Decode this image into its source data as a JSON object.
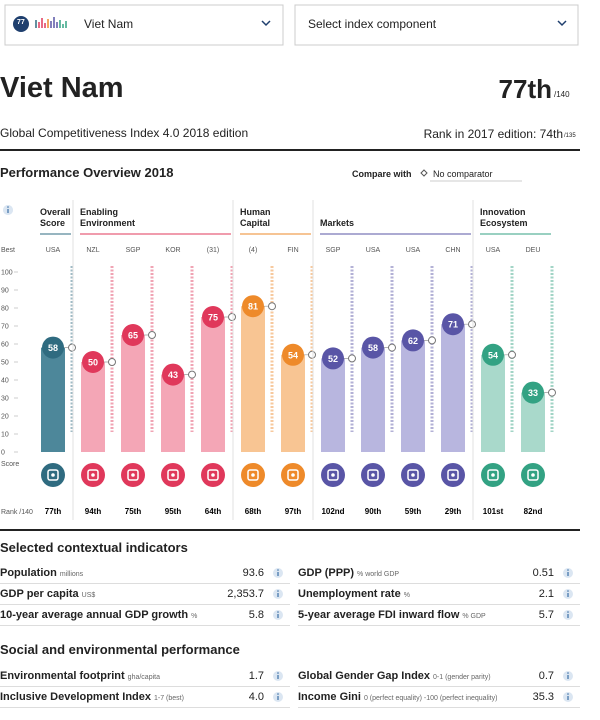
{
  "header": {
    "badge": "77",
    "country_select": "Viet Nam",
    "component_select": "Select index component",
    "title": "Viet Nam",
    "rank": "77th",
    "rank_total": "/140",
    "subtitle": "Global Competitiveness Index 4.0 2018 edition",
    "prior_rank": "Rank in 2017 edition: 74th",
    "prior_rank_total": "/135"
  },
  "overview": {
    "title": "Performance Overview 2018",
    "compare_label": "Compare with",
    "comparator": "No comparator"
  },
  "chart_data": {
    "type": "bar",
    "best_label": "Best",
    "score_label": "Score",
    "rank_label": "Rank /140",
    "ylim": [
      0,
      100
    ],
    "yticks": [
      0,
      10,
      20,
      30,
      40,
      50,
      60,
      70,
      80,
      90,
      100
    ],
    "series": [
      {
        "name": "Overall Score",
        "color": "#2f6b80",
        "bar_color": "#4d879a",
        "values": [
          58
        ],
        "best": [
          "USA"
        ],
        "ranks": [
          "77th"
        ]
      },
      {
        "name": "Enabling Environment",
        "color": "#e0385b",
        "bar_color": "#f4a6b6",
        "values": [
          50,
          65,
          43,
          75
        ],
        "best": [
          "NZL",
          "SGP",
          "KOR",
          "(31)"
        ],
        "ranks": [
          "94th",
          "75th",
          "95th",
          "64th"
        ]
      },
      {
        "name": "Human Capital",
        "color": "#ee8a2a",
        "bar_color": "#f8c593",
        "values": [
          81,
          54
        ],
        "best": [
          "(4)",
          "FIN"
        ],
        "ranks": [
          "68th",
          "97th"
        ]
      },
      {
        "name": "Markets",
        "color": "#5955a6",
        "bar_color": "#b8b6df",
        "values": [
          52,
          58,
          62,
          71
        ],
        "best": [
          "SGP",
          "USA",
          "USA",
          "CHN"
        ],
        "ranks": [
          "102nd",
          "90th",
          "59th",
          "29th"
        ]
      },
      {
        "name": "Innovation Ecosystem",
        "color": "#33a283",
        "bar_color": "#a9d9cb",
        "values": [
          54,
          33
        ],
        "best": [
          "USA",
          "DEU"
        ],
        "ranks": [
          "101st",
          "82nd"
        ]
      }
    ]
  },
  "contextual": {
    "title": "Selected contextual indicators",
    "left": [
      {
        "label": "Population",
        "unit": "millions",
        "value": "93.6"
      },
      {
        "label": "GDP per capita",
        "unit": "US$",
        "value": "2,353.7"
      },
      {
        "label": "10-year average annual GDP growth",
        "unit": "%",
        "value": "5.8"
      }
    ],
    "right": [
      {
        "label": "GDP (PPP)",
        "unit": "% world GDP",
        "value": "0.51"
      },
      {
        "label": "Unemployment rate",
        "unit": "%",
        "value": "2.1"
      },
      {
        "label": "5-year average FDI inward flow",
        "unit": "% GDP",
        "value": "5.7"
      }
    ]
  },
  "social": {
    "title": "Social and environmental performance",
    "left": [
      {
        "label": "Environmental footprint",
        "unit": "gha/capita",
        "value": "1.7"
      },
      {
        "label": "Inclusive Development Index",
        "unit": "1-7 (best)",
        "value": "4.0"
      }
    ],
    "right": [
      {
        "label": "Global Gender Gap Index",
        "unit": "0-1 (gender parity)",
        "value": "0.7"
      },
      {
        "label": "Income Gini",
        "unit": "0 (perfect equality) -100 (perfect inequality)",
        "value": "35.3"
      }
    ]
  }
}
